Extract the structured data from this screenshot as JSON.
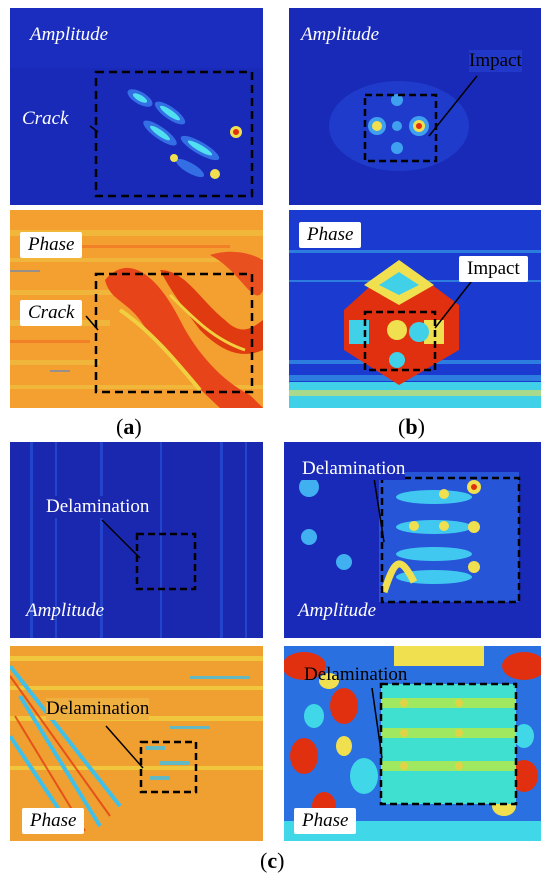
{
  "panels": {
    "a_amp": {
      "label": "Amplitude",
      "feature": "Crack"
    },
    "a_phase": {
      "label": "Phase",
      "feature": "Crack"
    },
    "b_amp": {
      "label": "Amplitude",
      "feature": "Impact"
    },
    "b_phase": {
      "label": "Phase",
      "feature": "Impact"
    },
    "c1_amp": {
      "label": "Amplitude",
      "feature": "Delamination"
    },
    "c2_amp": {
      "label": "Amplitude",
      "feature": "Delamination"
    },
    "c1_phase": {
      "label": "Phase",
      "feature": "Delamination"
    },
    "c2_phase": {
      "label": "Phase",
      "feature": "Delamination"
    }
  },
  "captions": {
    "a": "a",
    "b": "b",
    "c": "c"
  },
  "colors": {
    "dark_blue": "#1020b0",
    "orange": "#f59a2a",
    "red": "#e03010",
    "cyan": "#40d8f0",
    "yellow": "#f0e040"
  }
}
